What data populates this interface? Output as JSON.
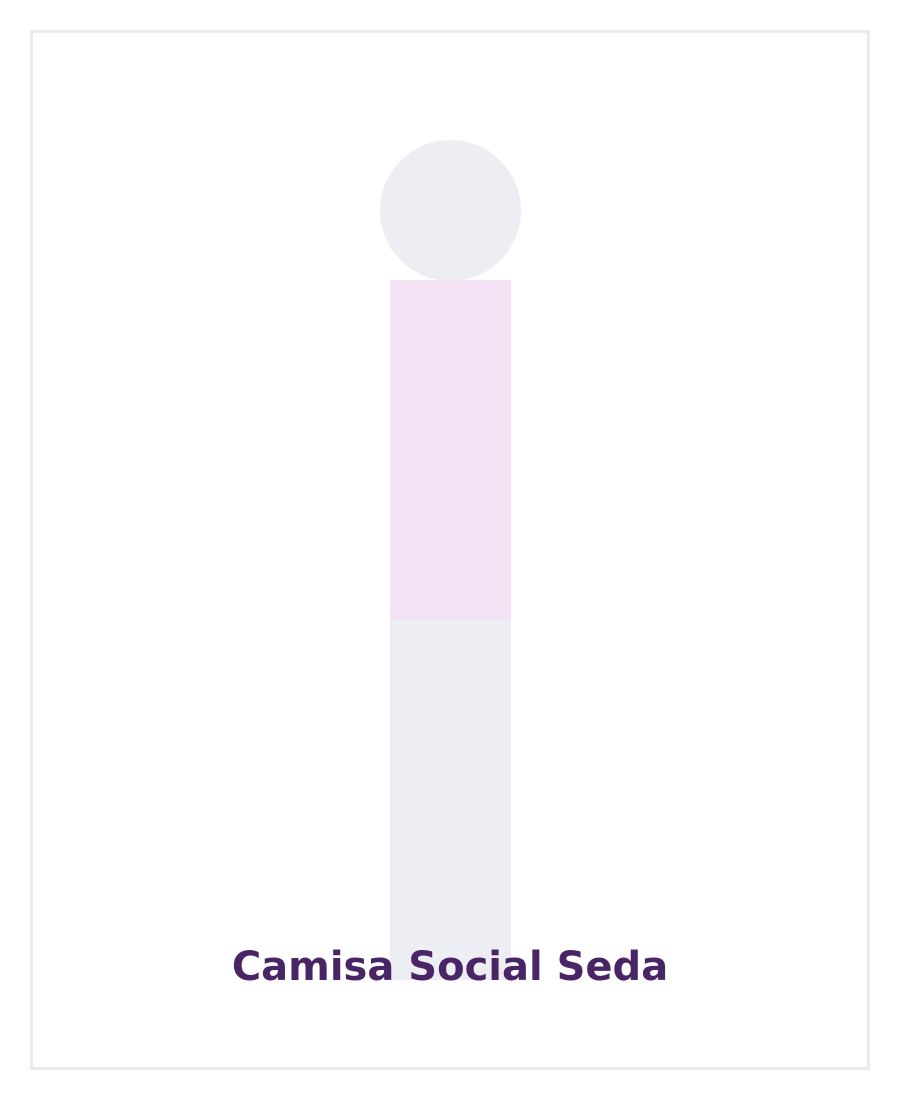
{
  "product": {
    "name": "Camisa Social Seda"
  },
  "colors": {
    "frame_border": "#ebeaf3",
    "head": "#edeef3",
    "torso": "#f3e2f3",
    "legs": "#edeef3",
    "title": "#4a2566"
  }
}
